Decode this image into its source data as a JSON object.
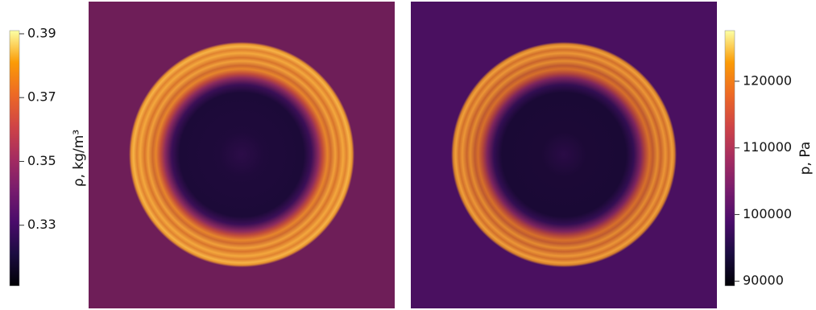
{
  "chart_data": [
    {
      "type": "heatmap",
      "colormap": "inferno",
      "colorbar_label": "ρ, kg/m³",
      "ylim": [
        0.311,
        0.391
      ],
      "yticks": [
        0.33,
        0.35,
        0.37,
        0.39
      ]
    },
    {
      "type": "heatmap",
      "colormap": "inferno",
      "colorbar_label": "p, Pa",
      "ylim": [
        89300,
        127600
      ],
      "yticks": [
        90000,
        100000,
        110000,
        120000
      ]
    }
  ]
}
